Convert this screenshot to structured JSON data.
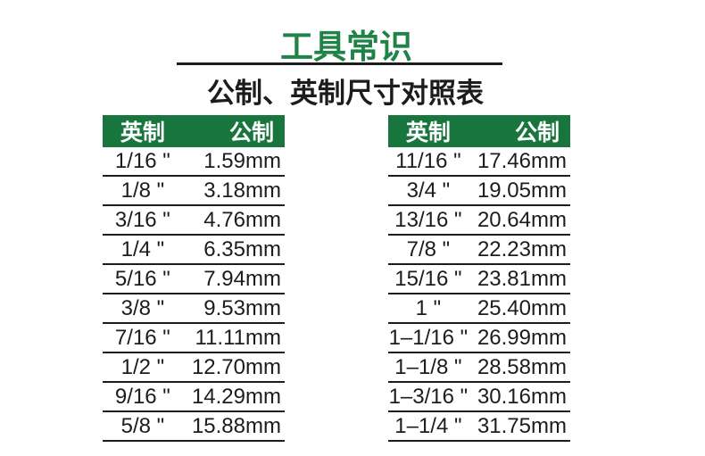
{
  "page": {
    "title": "工具常识",
    "subtitle": "公制、英制尺寸对照表"
  },
  "theme": {
    "header_green": "#17753d",
    "title_green": "#1f8347",
    "ink": "#1c1c1c",
    "background": "#ffffff",
    "header_text": "#ffffff"
  },
  "tables": [
    {
      "headers": {
        "imperial": "英制",
        "metric": "公制"
      },
      "rows": [
        {
          "imperial": "1/16 \"",
          "metric": "1.59mm"
        },
        {
          "imperial": "1/8 \"",
          "metric": "3.18mm"
        },
        {
          "imperial": "3/16 \"",
          "metric": "4.76mm"
        },
        {
          "imperial": "1/4 \"",
          "metric": "6.35mm"
        },
        {
          "imperial": "5/16 \"",
          "metric": "7.94mm"
        },
        {
          "imperial": "3/8 \"",
          "metric": "9.53mm"
        },
        {
          "imperial": "7/16 \"",
          "metric": "11.11mm"
        },
        {
          "imperial": "1/2 \"",
          "metric": "12.70mm"
        },
        {
          "imperial": "9/16 \"",
          "metric": "14.29mm"
        },
        {
          "imperial": "5/8 \"",
          "metric": "15.88mm"
        }
      ]
    },
    {
      "headers": {
        "imperial": "英制",
        "metric": "公制"
      },
      "rows": [
        {
          "imperial": "11/16 \"",
          "metric": "17.46mm"
        },
        {
          "imperial": "3/4 \"",
          "metric": "19.05mm"
        },
        {
          "imperial": "13/16 \"",
          "metric": "20.64mm"
        },
        {
          "imperial": "7/8 \"",
          "metric": "22.23mm"
        },
        {
          "imperial": "15/16 \"",
          "metric": "23.81mm"
        },
        {
          "imperial": "1 \"",
          "metric": "25.40mm"
        },
        {
          "imperial": "1–1/16 \"",
          "metric": "26.99mm"
        },
        {
          "imperial": "1–1/8 \"",
          "metric": "28.58mm"
        },
        {
          "imperial": "1–3/16 \"",
          "metric": "30.16mm"
        },
        {
          "imperial": "1–1/4 \"",
          "metric": "31.75mm"
        }
      ]
    }
  ]
}
